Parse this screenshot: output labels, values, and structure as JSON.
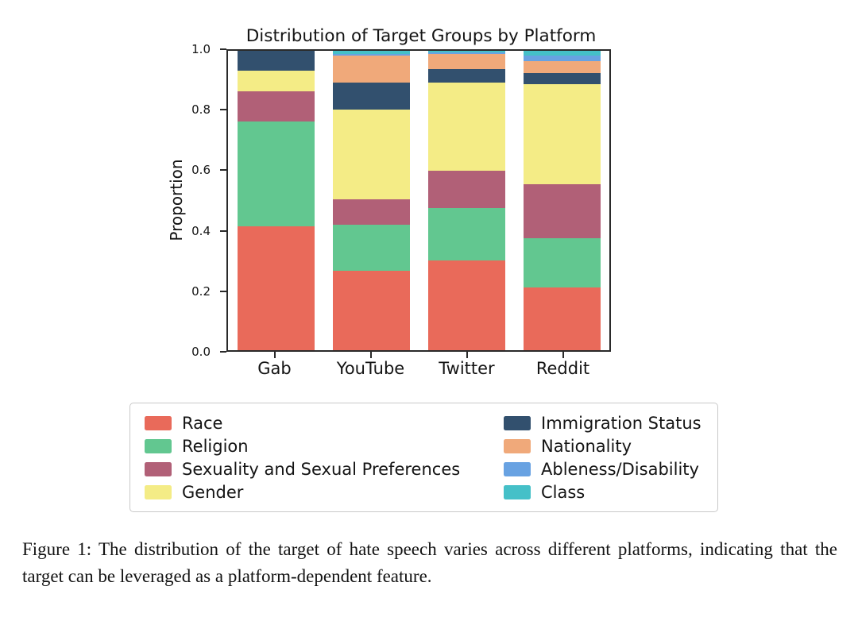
{
  "chart": {
    "title": "Distribution of Target Groups by Platform",
    "ylabel": "Proportion"
  },
  "chart_data": {
    "type": "bar",
    "stacked": true,
    "title": "Distribution of Target Groups by Platform",
    "xlabel": "",
    "ylabel": "Proportion",
    "ylim": [
      0,
      1
    ],
    "yticks": [
      0,
      0.2,
      0.4,
      0.6,
      0.8,
      1.0
    ],
    "grid": false,
    "legend_position": "below",
    "legend_columns": 2,
    "categories": [
      "Gab",
      "YouTube",
      "Twitter",
      "Reddit"
    ],
    "series": [
      {
        "name": "Race",
        "color": "#e96a5a",
        "values": [
          0.415,
          0.265,
          0.3,
          0.21
        ]
      },
      {
        "name": "Religion",
        "color": "#62c790",
        "values": [
          0.35,
          0.155,
          0.175,
          0.165
        ]
      },
      {
        "name": "Sexuality and Sexual Preferences",
        "color": "#b16077",
        "values": [
          0.1,
          0.085,
          0.125,
          0.18
        ]
      },
      {
        "name": "Gender",
        "color": "#f4ec86",
        "values": [
          0.07,
          0.3,
          0.295,
          0.335
        ]
      },
      {
        "name": "Immigration Status",
        "color": "#32506e",
        "values": [
          0.065,
          0.09,
          0.045,
          0.035
        ]
      },
      {
        "name": "Nationality",
        "color": "#f0a97a",
        "values": [
          0.0,
          0.09,
          0.05,
          0.04
        ]
      },
      {
        "name": "Ableness/Disability",
        "color": "#68a2e2",
        "values": [
          0.0,
          0.005,
          0.005,
          0.02
        ]
      },
      {
        "name": "Class",
        "color": "#45c0c8",
        "values": [
          0.0,
          0.01,
          0.005,
          0.015
        ]
      }
    ]
  },
  "caption": "Figure 1: The distribution of the target of hate speech varies across different platforms, indicating that the target can be leveraged as a platform-dependent feature."
}
